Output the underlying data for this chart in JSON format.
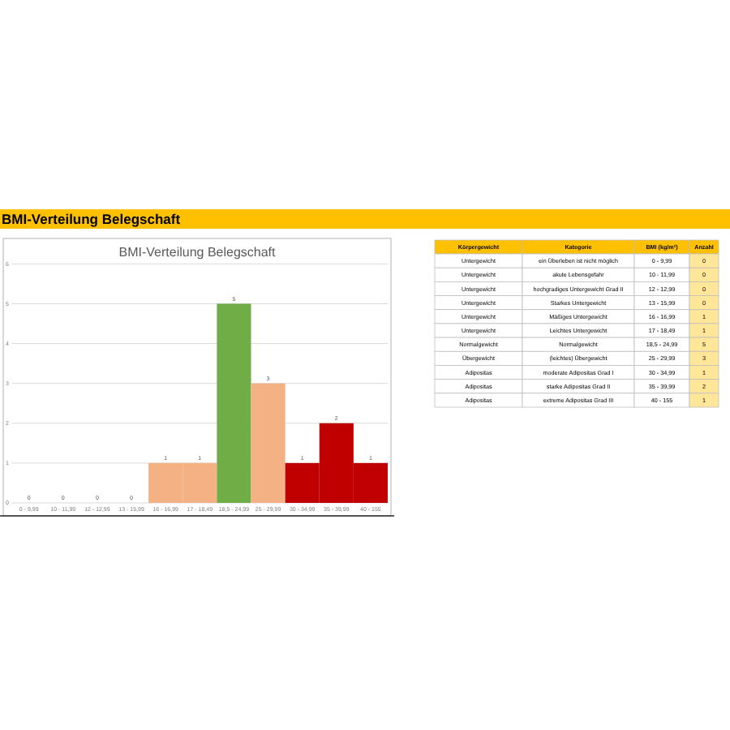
{
  "chart_data": [
    {
      "type": "other",
      "title": "BMI-Verteilung Belegschaft"
    },
    {
      "type": "bar",
      "title": "BMI-Verteilung Belegschaft",
      "categories": [
        "0 - 9,99",
        "10 - 11,99",
        "12 - 12,99",
        "13 - 15,99",
        "16 - 16,99",
        "17 - 18,49",
        "18,5 - 24,99",
        "25 - 29,99",
        "30 - 34,99",
        "35 - 39,99",
        "40 - 155"
      ],
      "values": [
        0,
        0,
        0,
        0,
        1,
        1,
        5,
        3,
        1,
        2,
        1
      ],
      "colors": [
        "#f4b183",
        "#f4b183",
        "#f4b183",
        "#f4b183",
        "#f4b183",
        "#f4b183",
        "#70ad47",
        "#f4b183",
        "#c00000",
        "#c00000",
        "#c00000"
      ],
      "data_labels": true,
      "ylim": [
        0,
        6
      ],
      "yticks": [
        0,
        1,
        2,
        3,
        4,
        5,
        6
      ],
      "grid": "y"
    },
    {
      "type": "other",
      "categories": [
        "Körpergewicht",
        "Kategorie",
        "BMI (kg/m²)",
        "Anzahl"
      ],
      "cell_labels": [
        [
          "Untergewicht",
          "ein Überleben ist nicht möglich",
          "0 - 9,99",
          "0"
        ],
        [
          "Untergewicht",
          "akute Lebensgefahr",
          "10 - 11,99",
          "0"
        ],
        [
          "Untergewicht",
          "hochgradiges Untergewicht Grad II",
          "12 - 12,99",
          "0"
        ],
        [
          "Untergewicht",
          "Starkes Untergewicht",
          "13 - 15,99",
          "0"
        ],
        [
          "Untergewicht",
          "Mäßiges Untergewicht",
          "16 - 16,99",
          "1"
        ],
        [
          "Untergewicht",
          "Leichtes Untergewicht",
          "17 - 18,49",
          "1"
        ],
        [
          "Normalgewicht",
          "Normalgewicht",
          "18,5 - 24,99",
          "5"
        ],
        [
          "Übergewicht",
          "(leichtes) Übergewicht",
          "25 - 29,99",
          "3"
        ],
        [
          "Adipositas",
          "moderate Adipositas Grad I",
          "30 - 34,99",
          "1"
        ],
        [
          "Adipositas",
          "starke Adipositas Grad II",
          "35 - 39,99",
          "2"
        ],
        [
          "Adipositas",
          "extreme Adipositas Grad III",
          "40 - 155",
          "1"
        ]
      ]
    }
  ]
}
